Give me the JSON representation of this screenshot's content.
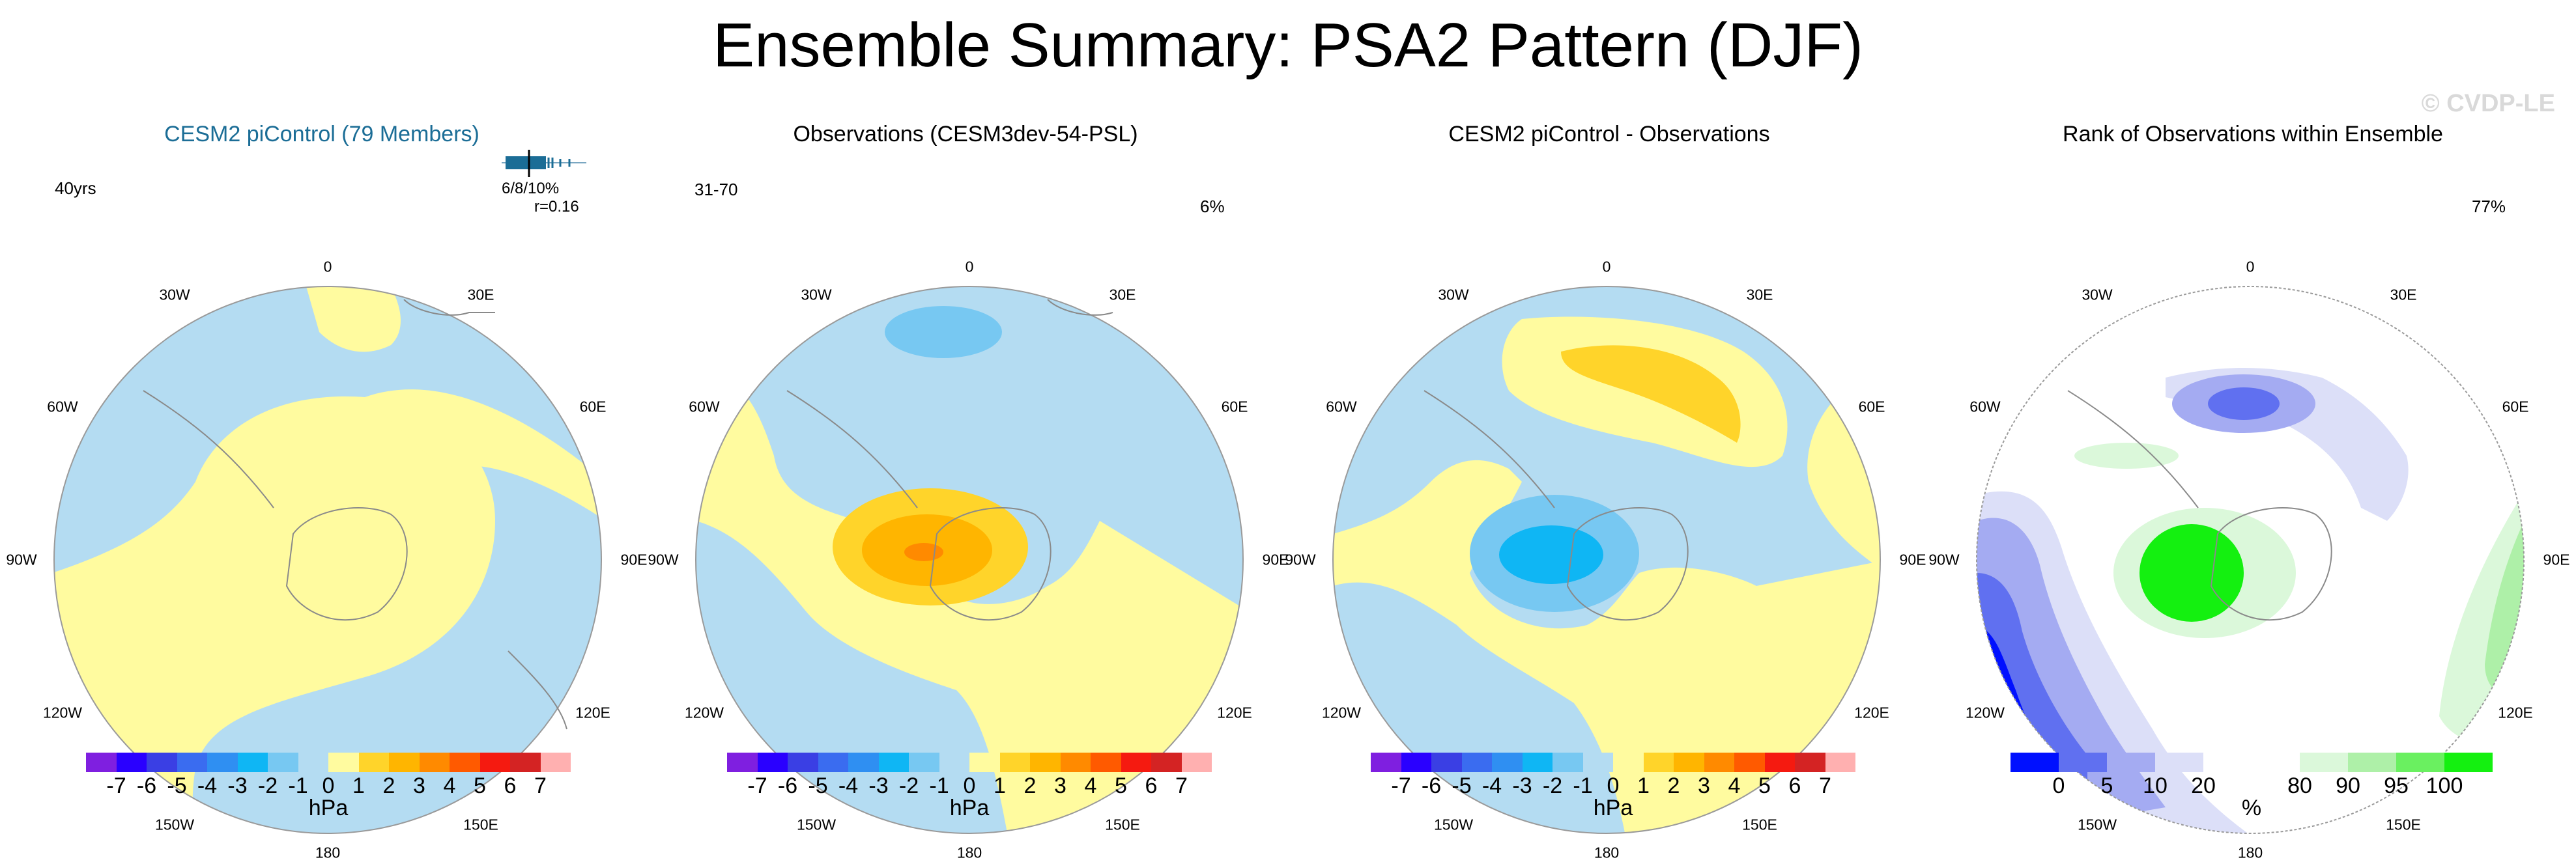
{
  "title": "Ensemble Summary: PSA2 Pattern (DJF)",
  "watermark": "© CVDP-LE",
  "lon_labels": [
    "0",
    "30E",
    "60E",
    "90E",
    "120E",
    "150E",
    "180",
    "150W",
    "120W",
    "90W",
    "60W",
    "30W"
  ],
  "panels": [
    {
      "title": "CESM2 piControl (79 Members)",
      "left_note": "40yrs",
      "right_note": "",
      "inset_note": "6/8/10%",
      "inset_r": "r=0.16",
      "map": "model"
    },
    {
      "title": "Observations (CESM3dev-54-PSL)",
      "left_note": "31-70",
      "right_note": "6%",
      "map": "obs"
    },
    {
      "title": "CESM2 piControl - Observations",
      "left_note": "",
      "right_note": "",
      "map": "diff"
    },
    {
      "title": "Rank of Observations within Ensemble",
      "left_note": "",
      "right_note": "77%",
      "map": "rank"
    }
  ],
  "colorbar_hpa": {
    "colors": [
      "#7f1fe0",
      "#2a00ff",
      "#3a3fe4",
      "#3a6cf0",
      "#2f8ff2",
      "#0fb6f4",
      "#77c8f2",
      "#b4dcf2",
      "#fffb9f",
      "#ffd42a",
      "#ffb500",
      "#ff8a00",
      "#ff5a00",
      "#f51a10",
      "#d42323",
      "#ffb0b0"
    ],
    "labels": [
      "-7",
      "-6",
      "-5",
      "-4",
      "-3",
      "-2",
      "-1",
      "0",
      "1",
      "2",
      "3",
      "4",
      "5",
      "6",
      "7"
    ],
    "unit": "hPa"
  },
  "colorbar_rank": {
    "colors": [
      "#0010ff",
      "#6070f0",
      "#a4abf2",
      "#dcdff8",
      "#ffffff",
      "#ffffff",
      "#dbf8da",
      "#aef0a8",
      "#6af060",
      "#14f010"
    ],
    "labels": [
      "0",
      "5",
      "10",
      "20",
      "80",
      "90",
      "95",
      "100"
    ],
    "unit": "%"
  }
}
